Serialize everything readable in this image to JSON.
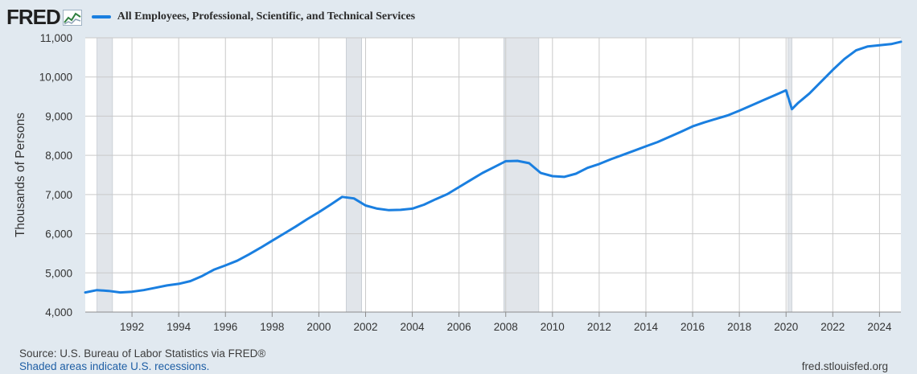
{
  "brand": {
    "logo_text": "FRED"
  },
  "chart_data": {
    "type": "line",
    "title": "",
    "ylabel": "Thousands of Persons",
    "xlabel": "",
    "x_range": [
      "1990-01-01",
      "2024-12-01"
    ],
    "ylim": [
      4000,
      11000
    ],
    "yticks": [
      4000,
      5000,
      6000,
      7000,
      8000,
      9000,
      10000,
      11000
    ],
    "ytick_labels": [
      "4,000",
      "5,000",
      "6,000",
      "7,000",
      "8,000",
      "9,000",
      "10,000",
      "11,000"
    ],
    "xticks": [
      "1992",
      "1994",
      "1996",
      "1998",
      "2000",
      "2002",
      "2004",
      "2006",
      "2008",
      "2010",
      "2012",
      "2014",
      "2016",
      "2018",
      "2020",
      "2022",
      "2024"
    ],
    "grid": true,
    "legend_position": "top-left",
    "recessions": [
      {
        "start": "1990-07-01",
        "end": "1991-03-01"
      },
      {
        "start": "2001-03-01",
        "end": "2001-11-01"
      },
      {
        "start": "2007-12-01",
        "end": "2009-06-01"
      },
      {
        "start": "2020-02-01",
        "end": "2020-04-01"
      }
    ],
    "series": [
      {
        "name": "All Employees, Professional, Scientific, and Technical Services",
        "color": "#1a7fe0",
        "points": [
          [
            "1990-01-01",
            4500
          ],
          [
            "1990-07-01",
            4560
          ],
          [
            "1991-01-01",
            4540
          ],
          [
            "1991-07-01",
            4500
          ],
          [
            "1992-01-01",
            4520
          ],
          [
            "1992-07-01",
            4560
          ],
          [
            "1993-01-01",
            4620
          ],
          [
            "1993-07-01",
            4680
          ],
          [
            "1994-01-01",
            4720
          ],
          [
            "1994-07-01",
            4790
          ],
          [
            "1995-01-01",
            4920
          ],
          [
            "1995-07-01",
            5080
          ],
          [
            "1996-01-01",
            5190
          ],
          [
            "1996-07-01",
            5310
          ],
          [
            "1997-01-01",
            5470
          ],
          [
            "1997-07-01",
            5640
          ],
          [
            "1998-01-01",
            5820
          ],
          [
            "1998-07-01",
            6000
          ],
          [
            "1999-01-01",
            6180
          ],
          [
            "1999-07-01",
            6370
          ],
          [
            "2000-01-01",
            6550
          ],
          [
            "2000-07-01",
            6740
          ],
          [
            "2001-01-01",
            6940
          ],
          [
            "2001-07-01",
            6900
          ],
          [
            "2002-01-01",
            6720
          ],
          [
            "2002-07-01",
            6640
          ],
          [
            "2003-01-01",
            6600
          ],
          [
            "2003-07-01",
            6610
          ],
          [
            "2004-01-01",
            6640
          ],
          [
            "2004-07-01",
            6740
          ],
          [
            "2005-01-01",
            6880
          ],
          [
            "2005-07-01",
            7010
          ],
          [
            "2006-01-01",
            7190
          ],
          [
            "2006-07-01",
            7370
          ],
          [
            "2007-01-01",
            7550
          ],
          [
            "2007-07-01",
            7700
          ],
          [
            "2008-01-01",
            7850
          ],
          [
            "2008-07-01",
            7860
          ],
          [
            "2009-01-01",
            7800
          ],
          [
            "2009-07-01",
            7550
          ],
          [
            "2010-01-01",
            7470
          ],
          [
            "2010-07-01",
            7450
          ],
          [
            "2011-01-01",
            7530
          ],
          [
            "2011-07-01",
            7680
          ],
          [
            "2012-01-01",
            7780
          ],
          [
            "2012-07-01",
            7900
          ],
          [
            "2013-01-01",
            8010
          ],
          [
            "2013-07-01",
            8120
          ],
          [
            "2014-01-01",
            8230
          ],
          [
            "2014-07-01",
            8340
          ],
          [
            "2015-01-01",
            8470
          ],
          [
            "2015-07-01",
            8600
          ],
          [
            "2016-01-01",
            8740
          ],
          [
            "2016-07-01",
            8840
          ],
          [
            "2017-01-01",
            8930
          ],
          [
            "2017-07-01",
            9020
          ],
          [
            "2018-01-01",
            9140
          ],
          [
            "2018-07-01",
            9270
          ],
          [
            "2019-01-01",
            9400
          ],
          [
            "2019-07-01",
            9530
          ],
          [
            "2020-01-01",
            9660
          ],
          [
            "2020-04-01",
            9180
          ],
          [
            "2020-07-01",
            9330
          ],
          [
            "2021-01-01",
            9580
          ],
          [
            "2021-07-01",
            9880
          ],
          [
            "2022-01-01",
            10180
          ],
          [
            "2022-07-01",
            10460
          ],
          [
            "2023-01-01",
            10680
          ],
          [
            "2023-07-01",
            10780
          ],
          [
            "2024-01-01",
            10810
          ],
          [
            "2024-07-01",
            10840
          ],
          [
            "2024-12-01",
            10900
          ]
        ]
      }
    ]
  },
  "footer": {
    "source": "Source: U.S. Bureau of Labor Statistics via FRED®",
    "recession_note": "Shaded areas indicate U.S. recessions.",
    "site": "fred.stlouisfed.org"
  },
  "colors": {
    "background": "#e1e9f0",
    "plot_bg": "#ffffff",
    "recession": "#e1e5ea",
    "grid": "#c9c9c9",
    "axis_text": "#333333"
  }
}
